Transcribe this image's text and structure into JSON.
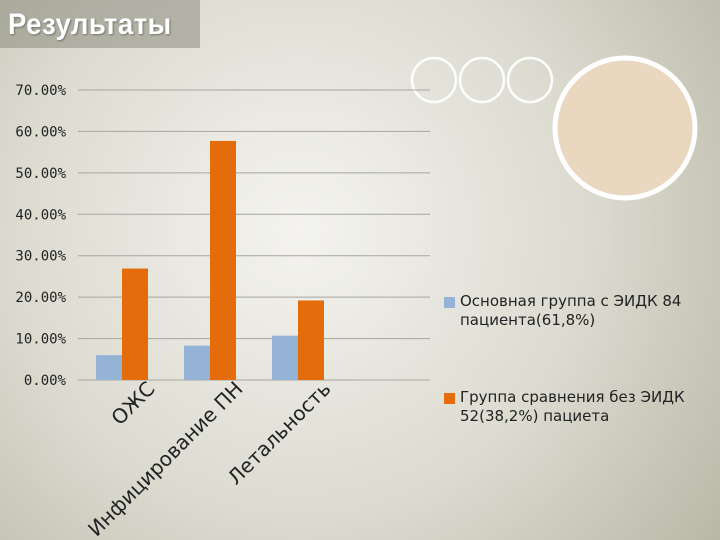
{
  "title": "Результаты",
  "colors": {
    "background": "#d9d8cc",
    "series_1": "#95b3d7",
    "series_2": "#e46c0a"
  },
  "chart_data": {
    "type": "bar",
    "categories": [
      "ОЖС",
      "Инфицирование ПН",
      "Летальность"
    ],
    "series": [
      {
        "name": "Основная группа с ЭИДК 84 пациента(61,8%)",
        "values": [
          6.0,
          8.3,
          10.7
        ],
        "color": "#95b3d7"
      },
      {
        "name": "Группа сравнения без ЭИДК 52(38,2%) пациета",
        "values": [
          26.9,
          57.7,
          19.2
        ],
        "color": "#e46c0a"
      }
    ],
    "yticks": [
      "0.00%",
      "10.00%",
      "20.00%",
      "30.00%",
      "40.00%",
      "50.00%",
      "60.00%",
      "70.00%"
    ],
    "ylim": [
      0,
      70
    ],
    "grid": true,
    "legend": "right"
  }
}
